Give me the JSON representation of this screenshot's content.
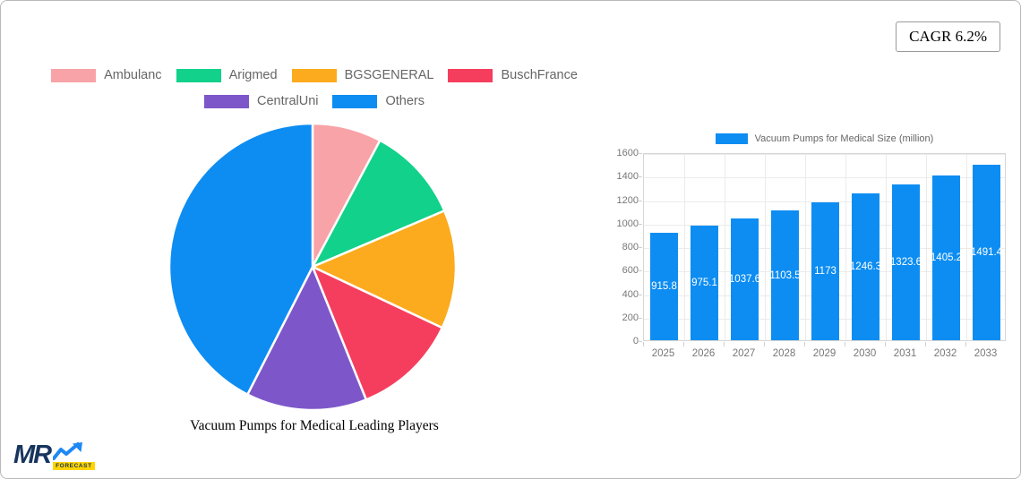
{
  "card": {
    "cagr_label": "CAGR 6.2%"
  },
  "logo": {
    "brand": "MR",
    "sub": "FORECAST",
    "brand_color": "#17355e",
    "sub_bg": "#ffd400",
    "arrow_color": "#1e88f5"
  },
  "chart_data": [
    {
      "type": "pie",
      "title": "Vacuum Pumps for Medical Leading Players",
      "labels": [
        "Ambulanc",
        "Arigmed",
        "BGSGENERAL",
        "BuschFrance",
        "CentralUni",
        "Others"
      ],
      "values": [
        7.8,
        10.8,
        13.4,
        11.9,
        13.6,
        42.5
      ],
      "colors": [
        "#f8a3a7",
        "#12d18b",
        "#fbab1d",
        "#f53e5e",
        "#7d57c9",
        "#0d8df2"
      ],
      "legend_position": "top",
      "legend_rows": [
        4,
        2
      ],
      "legend_text_color": "#666666"
    },
    {
      "type": "bar",
      "title": "Vacuum Pumps for Medical Size (million)",
      "categories": [
        "2025",
        "2026",
        "2027",
        "2028",
        "2029",
        "2030",
        "2031",
        "2032",
        "2033"
      ],
      "values": [
        915.8,
        975.1,
        1037.6,
        1103.5,
        1173,
        1246.3,
        1323.6,
        1405.2,
        1491.4
      ],
      "value_labels": [
        "915.8",
        "975.1",
        "1037.6",
        "1103.5",
        "1173",
        "1246.3",
        "1323.6",
        "1405.2",
        "1491.4"
      ],
      "bar_color": "#0d8df2",
      "ylim": [
        0,
        1600
      ],
      "y_ticks": [
        0,
        200,
        400,
        600,
        800,
        1000,
        1200,
        1400,
        1600
      ],
      "grid": true,
      "legend_position": "top",
      "value_label_color": "#ffffff"
    }
  ]
}
